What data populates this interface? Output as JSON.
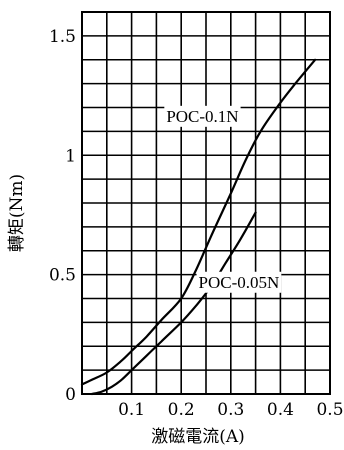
{
  "chart_data": {
    "type": "line",
    "title": "",
    "xlabel": "激磁電流(A)",
    "ylabel": "轉矩(Nm)",
    "xlim": [
      0,
      0.5
    ],
    "ylim": [
      0,
      1.6
    ],
    "x_ticks": [
      0.1,
      0.2,
      0.3,
      0.4,
      0.5
    ],
    "x_tick_labels": [
      "0.1",
      "0.2",
      "0.3",
      "0.4",
      "0.5"
    ],
    "y_ticks": [
      0,
      0.5,
      1,
      1.5
    ],
    "y_tick_labels": [
      "0",
      "0.5",
      "1",
      "1.5"
    ],
    "grid": true,
    "grid_x_step": 0.05,
    "grid_y_step": 0.1,
    "series": [
      {
        "name": "POC-0.1N",
        "x": [
          0,
          0.02,
          0.05,
          0.08,
          0.1,
          0.13,
          0.16,
          0.2,
          0.23,
          0.26,
          0.3,
          0.33,
          0.36,
          0.4,
          0.43,
          0.47
        ],
        "y": [
          0.04,
          0.06,
          0.09,
          0.14,
          0.18,
          0.24,
          0.31,
          0.4,
          0.52,
          0.66,
          0.84,
          0.98,
          1.1,
          1.22,
          1.3,
          1.4
        ]
      },
      {
        "name": "POC-0.05N",
        "x": [
          0.02,
          0.04,
          0.06,
          0.08,
          0.1,
          0.13,
          0.16,
          0.2,
          0.23,
          0.26,
          0.29,
          0.32,
          0.35
        ],
        "y": [
          0.0,
          0.01,
          0.03,
          0.06,
          0.1,
          0.16,
          0.22,
          0.3,
          0.37,
          0.45,
          0.55,
          0.65,
          0.76
        ]
      }
    ]
  }
}
